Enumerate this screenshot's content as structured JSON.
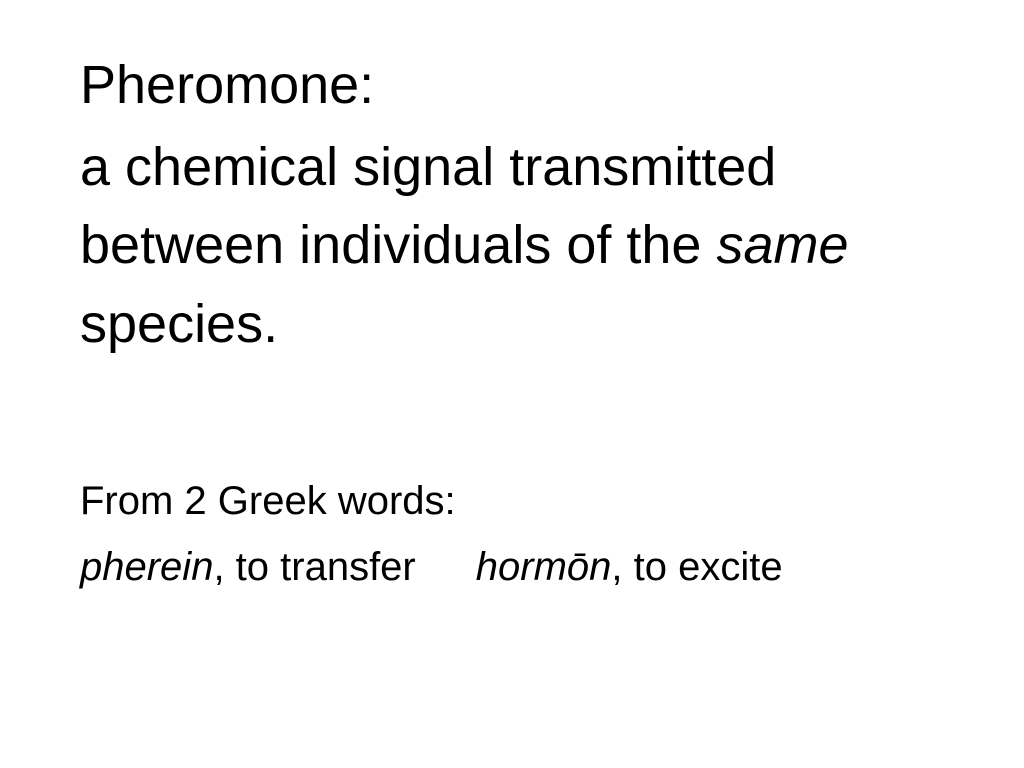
{
  "slide": {
    "title": "Pheromone:",
    "definition_part1": "a chemical signal transmitted between individuals of the ",
    "definition_italic": "same",
    "definition_part2": " species.",
    "etymology_header": "From 2 Greek words:",
    "etym1_word": "pherein",
    "etym1_meaning": ", to transfer",
    "etym2_word": "hormōn",
    "etym2_meaning": ", to excite"
  },
  "style": {
    "background_color": "#ffffff",
    "text_color": "#000000",
    "font_family": "Arial, Helvetica, sans-serif",
    "title_fontsize": 54,
    "definition_fontsize": 54,
    "etymology_fontsize": 40
  }
}
